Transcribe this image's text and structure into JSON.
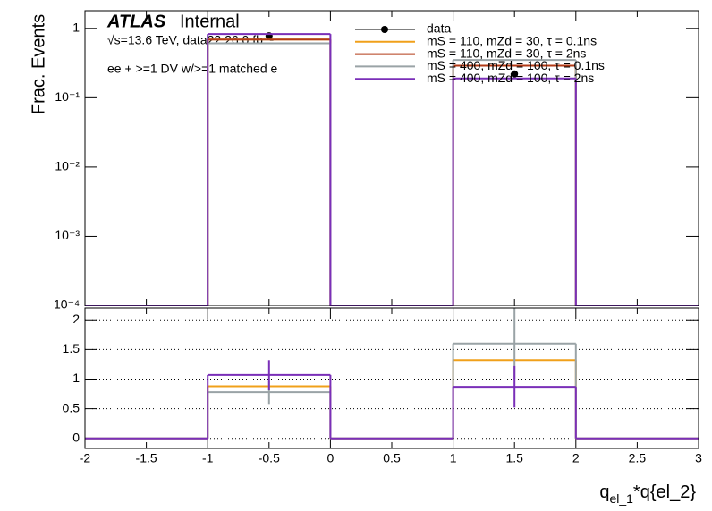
{
  "chart_data": [
    {
      "type": "histogram",
      "ylabel": "Frac. Events",
      "annotations": [
        "ATLAS",
        "Internal",
        "√s=13.6 TeV, data22 26.0 fb⁻¹",
        "ee + >=1 DV w/>=1 matched e"
      ],
      "bins": [
        -2,
        -1,
        0,
        1,
        2,
        3
      ],
      "xlim": [
        -2,
        3
      ],
      "xticks": [
        -2,
        -1.5,
        -1,
        -0.5,
        0,
        0.5,
        1,
        1.5,
        2,
        2.5,
        3
      ],
      "log_y": true,
      "ylim": [
        0.0001,
        1.8
      ],
      "yticks": [
        {
          "value": 0.0001,
          "label": "10⁻⁴"
        },
        {
          "value": 0.001,
          "label": "10⁻³"
        },
        {
          "value": 0.01,
          "label": "10⁻²"
        },
        {
          "value": 0.1,
          "label": "10⁻¹"
        },
        1
      ],
      "series": [
        {
          "name": "data",
          "color": "#000000",
          "marker": true,
          "values": [
            0,
            0.78,
            0,
            0.22,
            0
          ]
        },
        {
          "name": "mS = 110, mZd = 30, τ = 0.1ns",
          "color": "#f0a01a",
          "values": [
            0,
            0.69,
            0,
            0.29,
            0
          ]
        },
        {
          "name": "mS = 110, mZd = 30, τ = 2ns",
          "color": "#b23a16",
          "values": [
            0,
            0.69,
            0,
            0.29,
            0
          ]
        },
        {
          "name": "mS = 400, mZd = 100, τ = 0.1ns",
          "color": "#9aa3a6",
          "values": [
            0,
            0.61,
            0,
            0.35,
            0
          ]
        },
        {
          "name": "mS = 400, mZd = 100, τ = 2ns",
          "color": "#7a2fb8",
          "values": [
            0,
            0.83,
            0,
            0.19,
            0
          ]
        }
      ]
    },
    {
      "type": "histogram",
      "xlabel": [
        "q",
        "el_1",
        "*q{el_2}"
      ],
      "bins": [
        -2,
        -1,
        0,
        1,
        2,
        3
      ],
      "xlim": [
        -2,
        3
      ],
      "xticks": [
        -2,
        -1.5,
        -1,
        -0.5,
        0,
        0.5,
        1,
        1.5,
        2,
        2.5,
        3
      ],
      "ylim": [
        -0.17,
        2.2
      ],
      "yticks": [
        0,
        0.5,
        1,
        1.5,
        2
      ],
      "grid": true,
      "series": [
        {
          "color": "#f0a01a",
          "values": [
            0,
            0.88,
            0,
            1.32,
            0
          ]
        },
        {
          "color": "#9aa3a6",
          "values": [
            0,
            0.78,
            0,
            1.6,
            0
          ],
          "errors": [
            null,
            0.2,
            null,
            0.6,
            null
          ]
        },
        {
          "color": "#7a2fb8",
          "values": [
            0,
            1.07,
            0,
            0.87,
            0
          ],
          "errors": [
            null,
            0.25,
            null,
            0.35,
            null
          ]
        }
      ]
    }
  ]
}
